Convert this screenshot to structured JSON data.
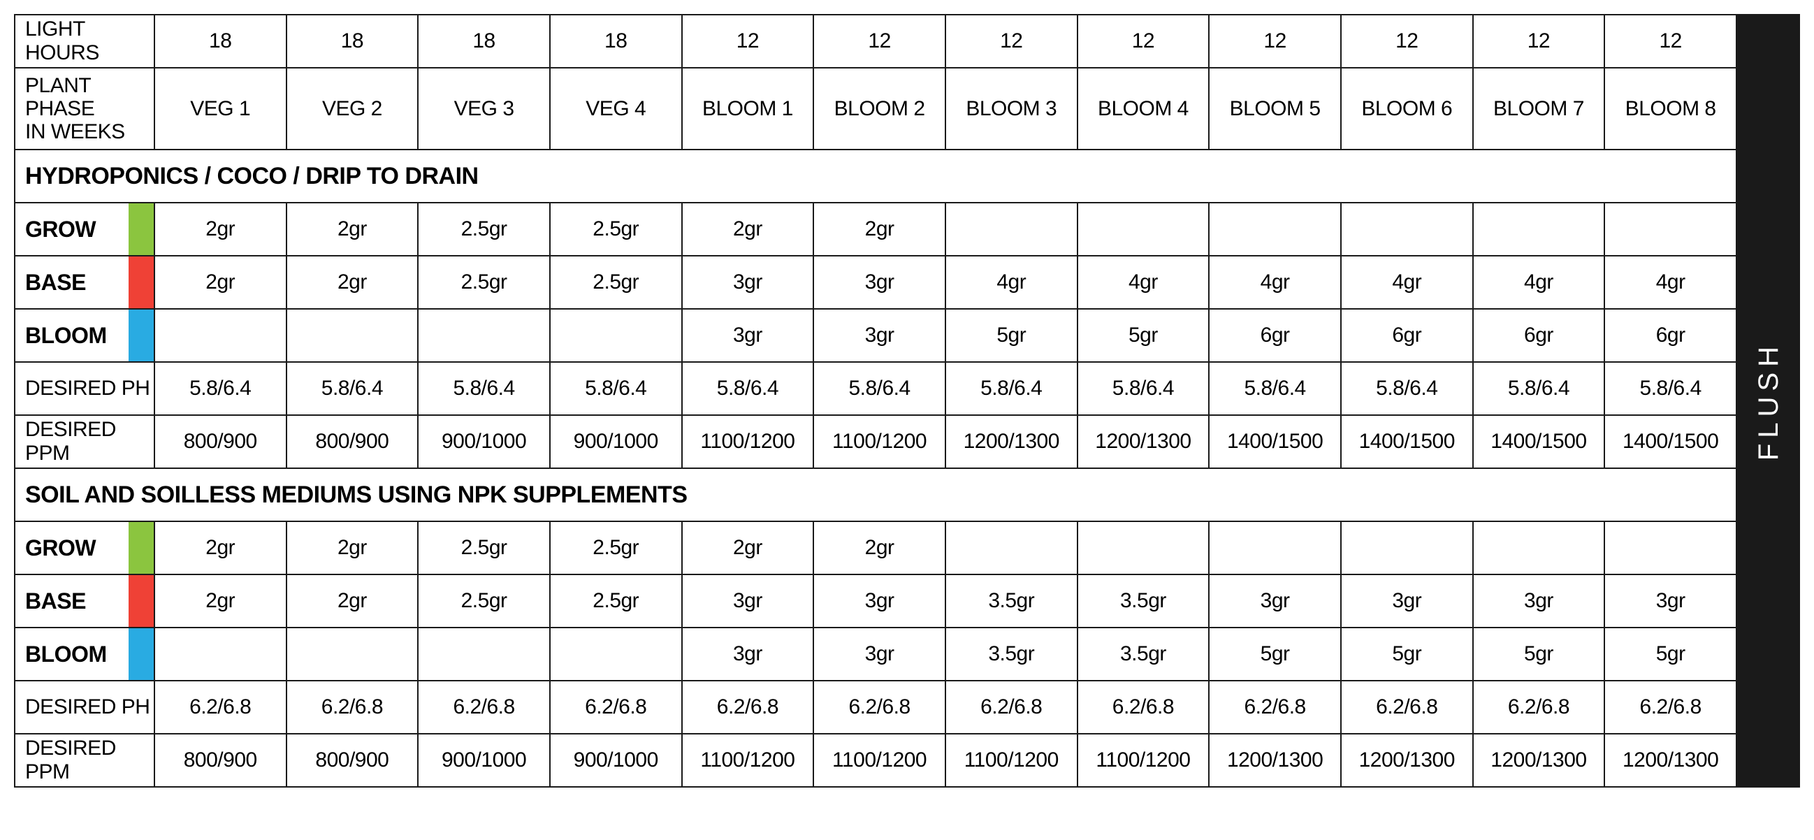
{
  "colors": {
    "grow": "#8bc53f",
    "base": "#ef4136",
    "bloom": "#29abe2",
    "flush_bg": "#1a1a1a",
    "border": "#1a1a1a"
  },
  "flush_label": "FLUSH",
  "header_rows": {
    "light": {
      "label": "LIGHT HOURS",
      "values": [
        "18",
        "18",
        "18",
        "18",
        "12",
        "12",
        "12",
        "12",
        "12",
        "12",
        "12",
        "12"
      ]
    },
    "phase": {
      "label_line1": "PLANT PHASE",
      "label_line2": "IN WEEKS",
      "values": [
        "VEG 1",
        "VEG 2",
        "VEG 3",
        "VEG 4",
        "BLOOM 1",
        "BLOOM 2",
        "BLOOM 3",
        "BLOOM 4",
        "BLOOM 5",
        "BLOOM 6",
        "BLOOM 7",
        "BLOOM 8"
      ]
    }
  },
  "sections": [
    {
      "title": "HYDROPONICS / COCO / DRIP TO DRAIN",
      "rows": [
        {
          "type": "swatch",
          "label": "GROW",
          "swatch": "grow",
          "values": [
            "2gr",
            "2gr",
            "2.5gr",
            "2.5gr",
            "2gr",
            "2gr",
            "",
            "",
            "",
            "",
            "",
            ""
          ]
        },
        {
          "type": "swatch",
          "label": "BASE",
          "swatch": "base",
          "values": [
            "2gr",
            "2gr",
            "2.5gr",
            "2.5gr",
            "3gr",
            "3gr",
            "4gr",
            "4gr",
            "4gr",
            "4gr",
            "4gr",
            "4gr"
          ]
        },
        {
          "type": "swatch",
          "label": "BLOOM",
          "swatch": "bloom",
          "values": [
            "",
            "",
            "",
            "",
            "3gr",
            "3gr",
            "5gr",
            "5gr",
            "6gr",
            "6gr",
            "6gr",
            "6gr"
          ]
        },
        {
          "type": "plain",
          "label": "DESIRED PH",
          "values": [
            "5.8/6.4",
            "5.8/6.4",
            "5.8/6.4",
            "5.8/6.4",
            "5.8/6.4",
            "5.8/6.4",
            "5.8/6.4",
            "5.8/6.4",
            "5.8/6.4",
            "5.8/6.4",
            "5.8/6.4",
            "5.8/6.4"
          ]
        },
        {
          "type": "plain",
          "label": "DESIRED PPM",
          "values": [
            "800/900",
            "800/900",
            "900/1000",
            "900/1000",
            "1100/1200",
            "1100/1200",
            "1200/1300",
            "1200/1300",
            "1400/1500",
            "1400/1500",
            "1400/1500",
            "1400/1500"
          ]
        }
      ]
    },
    {
      "title": "SOIL AND SOILLESS MEDIUMS USING NPK SUPPLEMENTS",
      "rows": [
        {
          "type": "swatch",
          "label": "GROW",
          "swatch": "grow",
          "values": [
            "2gr",
            "2gr",
            "2.5gr",
            "2.5gr",
            "2gr",
            "2gr",
            "",
            "",
            "",
            "",
            "",
            ""
          ]
        },
        {
          "type": "swatch",
          "label": "BASE",
          "swatch": "base",
          "values": [
            "2gr",
            "2gr",
            "2.5gr",
            "2.5gr",
            "3gr",
            "3gr",
            "3.5gr",
            "3.5gr",
            "3gr",
            "3gr",
            "3gr",
            "3gr"
          ]
        },
        {
          "type": "swatch",
          "label": "BLOOM",
          "swatch": "bloom",
          "values": [
            "",
            "",
            "",
            "",
            "3gr",
            "3gr",
            "3.5gr",
            "3.5gr",
            "5gr",
            "5gr",
            "5gr",
            "5gr"
          ]
        },
        {
          "type": "plain",
          "label": "DESIRED PH",
          "values": [
            "6.2/6.8",
            "6.2/6.8",
            "6.2/6.8",
            "6.2/6.8",
            "6.2/6.8",
            "6.2/6.8",
            "6.2/6.8",
            "6.2/6.8",
            "6.2/6.8",
            "6.2/6.8",
            "6.2/6.8",
            "6.2/6.8"
          ]
        },
        {
          "type": "plain",
          "label": "DESIRED PPM",
          "values": [
            "800/900",
            "800/900",
            "900/1000",
            "900/1000",
            "1100/1200",
            "1100/1200",
            "1100/1200",
            "1100/1200",
            "1200/1300",
            "1200/1300",
            "1200/1300",
            "1200/1300"
          ]
        }
      ]
    }
  ]
}
